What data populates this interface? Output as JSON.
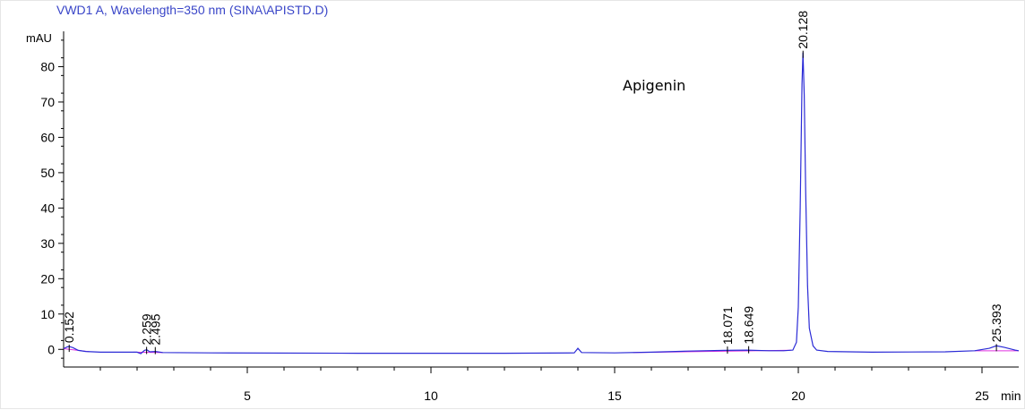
{
  "chart_data": {
    "type": "line",
    "title": "VWD1 A, Wavelength=350 nm (SINA\\APISTD.D)",
    "ylabel": "mAU",
    "xlabel": "min",
    "xlim": [
      0,
      26
    ],
    "ylim": [
      -5,
      90
    ],
    "x_ticks": [
      5,
      10,
      15,
      20,
      25
    ],
    "y_ticks": [
      0,
      10,
      20,
      30,
      40,
      50,
      60,
      70,
      80
    ],
    "annotation": "Apigenin",
    "peaks": [
      {
        "rt": 0.152,
        "label": "0.152",
        "height": 0.8
      },
      {
        "rt": 2.259,
        "label": "2.259",
        "height": 0.2
      },
      {
        "rt": 2.495,
        "label": "2.495",
        "height": 0.15
      },
      {
        "rt": 18.071,
        "label": "18.071",
        "height": 0.3
      },
      {
        "rt": 18.649,
        "label": "18.649",
        "height": 0.4
      },
      {
        "rt": 20.128,
        "label": "20.128",
        "height": 84
      },
      {
        "rt": 25.393,
        "label": "25.393",
        "height": 1.0
      }
    ],
    "series": [
      {
        "values": [
          [
            0,
            0.2
          ],
          [
            0.1,
            0.7
          ],
          [
            0.15,
            0.8
          ],
          [
            0.25,
            0.5
          ],
          [
            0.4,
            -0.3
          ],
          [
            0.6,
            -0.6
          ],
          [
            1.0,
            -0.8
          ],
          [
            2.0,
            -0.8
          ],
          [
            2.1,
            -1.2
          ],
          [
            2.2,
            -0.3
          ],
          [
            2.26,
            -0.1
          ],
          [
            2.35,
            -0.7
          ],
          [
            2.5,
            -0.6
          ],
          [
            2.7,
            -0.9
          ],
          [
            4,
            -1.0
          ],
          [
            8,
            -1.1
          ],
          [
            12,
            -1.1
          ],
          [
            13.9,
            -1.0
          ],
          [
            14.0,
            0.3
          ],
          [
            14.1,
            -0.9
          ],
          [
            15,
            -1.0
          ],
          [
            16,
            -0.8
          ],
          [
            17,
            -0.5
          ],
          [
            18.0,
            -0.3
          ],
          [
            18.6,
            -0.2
          ],
          [
            19.2,
            -0.4
          ],
          [
            19.6,
            -0.4
          ],
          [
            19.85,
            -0.2
          ],
          [
            19.95,
            2
          ],
          [
            20.0,
            12
          ],
          [
            20.05,
            40
          ],
          [
            20.1,
            75
          ],
          [
            20.128,
            84
          ],
          [
            20.16,
            72
          ],
          [
            20.2,
            45
          ],
          [
            20.25,
            18
          ],
          [
            20.3,
            6
          ],
          [
            20.4,
            1
          ],
          [
            20.5,
            -0.2
          ],
          [
            20.8,
            -0.6
          ],
          [
            22,
            -0.8
          ],
          [
            24,
            -0.7
          ],
          [
            24.8,
            -0.4
          ],
          [
            25.2,
            0.3
          ],
          [
            25.39,
            1.0
          ],
          [
            25.6,
            0.6
          ],
          [
            25.9,
            -0.2
          ],
          [
            26,
            -0.4
          ]
        ]
      }
    ]
  }
}
